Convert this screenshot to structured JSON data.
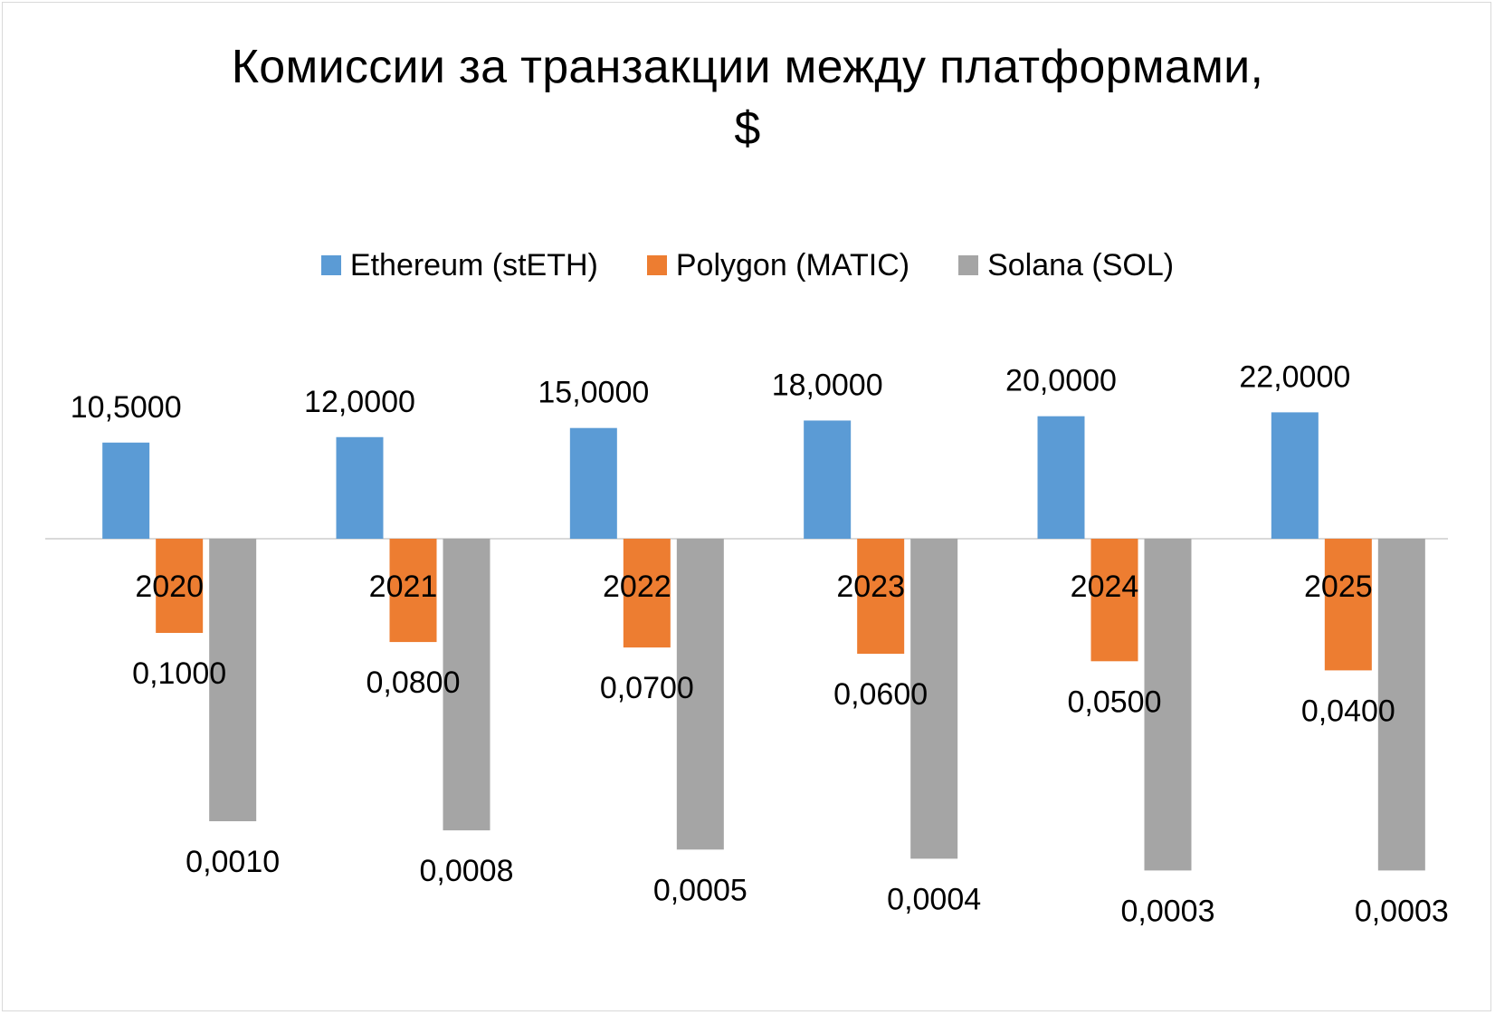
{
  "chart_data": {
    "type": "bar",
    "title_lines": [
      "Комиссии за транзакции между платформами,",
      "$"
    ],
    "categories": [
      "2020",
      "2021",
      "2022",
      "2023",
      "2024",
      "2025"
    ],
    "series": [
      {
        "name": "Ethereum (stETH)",
        "color": "#5B9BD5",
        "values": [
          10.5,
          12.0,
          15.0,
          18.0,
          20.0,
          22.0
        ],
        "labels": [
          "10,5000",
          "12,0000",
          "15,0000",
          "18,0000",
          "20,0000",
          "22,0000"
        ]
      },
      {
        "name": "Polygon (MATIC)",
        "color": "#ED7D31",
        "values": [
          0.1,
          0.08,
          0.07,
          0.06,
          0.05,
          0.04
        ],
        "labels": [
          "0,1000",
          "0,0800",
          "0,0700",
          "0,0600",
          "0,0500",
          "0,0400"
        ]
      },
      {
        "name": "Solana (SOL)",
        "color": "#A5A5A5",
        "values": [
          0.001,
          0.0008,
          0.0005,
          0.0004,
          0.0003,
          0.0003
        ],
        "labels": [
          "0,0010",
          "0,0008",
          "0,0005",
          "0,0004",
          "0,0003",
          "0,0003"
        ]
      }
    ],
    "y_scale": "log",
    "legend_position": "top",
    "grid": false,
    "axis_color": "#d9d9d9"
  }
}
